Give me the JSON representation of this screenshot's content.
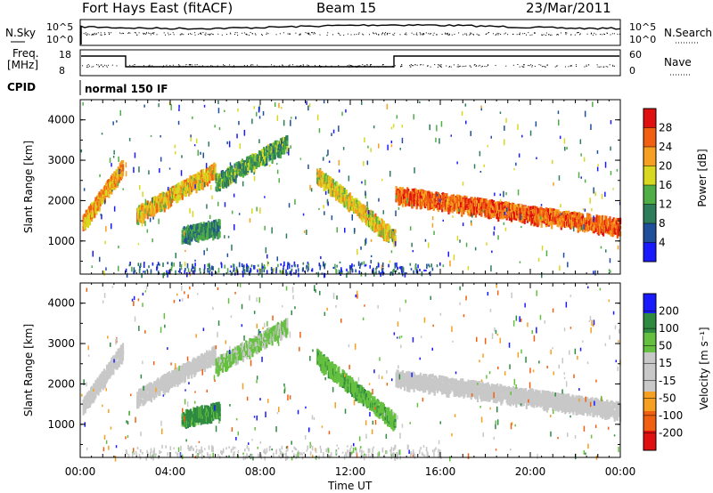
{
  "header": {
    "station": "Fort Hays East (fitACF)",
    "beam": "Beam 15",
    "date": "23/Mar/2011"
  },
  "panels": {
    "nsky": {
      "left_label": "N.Sky",
      "right_label": "N.Search",
      "left_ticks": [
        "10^5",
        "10^0"
      ],
      "right_ticks": [
        "10^5",
        "10^0"
      ]
    },
    "freq": {
      "left_label_1": "Freq.",
      "left_label_2": "[MHz]",
      "right_label": "Nave",
      "left_ticks": [
        "18",
        "8"
      ],
      "right_ticks": [
        "60",
        "0"
      ]
    },
    "cpid": {
      "label": "CPID",
      "mode": "normal 150 IF"
    },
    "power": {
      "ylabel": "Slant Range [km]",
      "yticks": [
        "4000",
        "3000",
        "2000",
        "1000"
      ],
      "cbar_label": "Power [dB]",
      "cbar_ticks": [
        "28",
        "24",
        "20",
        "16",
        "12",
        "8",
        "4"
      ]
    },
    "velocity": {
      "ylabel": "Slant Range [km]",
      "yticks": [
        "4000",
        "3000",
        "2000",
        "1000"
      ],
      "cbar_label": "Velocity [m s⁻¹]",
      "cbar_ticks": [
        "200",
        "100",
        "50",
        "15",
        "-15",
        "-50",
        "-100",
        "-200"
      ]
    }
  },
  "xaxis": {
    "label": "Time UT",
    "ticks": [
      "00:00",
      "04:00",
      "08:00",
      "12:00",
      "16:00",
      "20:00",
      "00:00"
    ]
  },
  "colors": {
    "power": [
      "#1a1aff",
      "#1f4f9a",
      "#2e7d5a",
      "#4fae46",
      "#d8d820",
      "#f5a020",
      "#f06010",
      "#e01010"
    ],
    "velocity": [
      "#e01010",
      "#f06010",
      "#f5a020",
      "#c8c8c8",
      "#c8c8c8",
      "#66c040",
      "#2e8a40",
      "#1a1aff"
    ]
  },
  "chart_data": [
    {
      "type": "heatmap",
      "title": "Power",
      "xlabel": "Time UT",
      "ylabel": "Slant Range [km]",
      "xlim": [
        0,
        24
      ],
      "ylim": [
        180,
        4500
      ],
      "colorbar": {
        "label": "Power [dB]",
        "range": [
          0,
          30
        ]
      },
      "echo_bands": [
        {
          "t0": 0.1,
          "t1": 1.9,
          "r0": 1500,
          "r1": 2900,
          "p": 20
        },
        {
          "t0": 2.5,
          "t1": 6.0,
          "r0": 1700,
          "r1": 2800,
          "p": 19
        },
        {
          "t0": 6.0,
          "t1": 9.2,
          "r0": 2500,
          "r1": 3500,
          "p": 12
        },
        {
          "t0": 4.5,
          "t1": 6.2,
          "r0": 1200,
          "r1": 1400,
          "p": 10
        },
        {
          "t0": 10.5,
          "t1": 14.0,
          "r0": 2700,
          "r1": 1100,
          "p": 18
        },
        {
          "t0": 14.0,
          "t1": 24.0,
          "r0": 2200,
          "r1": 1400,
          "p": 24
        }
      ]
    },
    {
      "type": "heatmap",
      "title": "Velocity",
      "xlabel": "Time UT",
      "ylabel": "Slant Range [km]",
      "xlim": [
        0,
        24
      ],
      "ylim": [
        180,
        4500
      ],
      "colorbar": {
        "label": "Velocity [m s⁻¹]",
        "range": [
          -200,
          200
        ]
      },
      "echo_bands": [
        {
          "t0": 0.1,
          "t1": 1.9,
          "r0": 1500,
          "r1": 2900,
          "v": 0
        },
        {
          "t0": 2.5,
          "t1": 6.0,
          "r0": 1700,
          "r1": 2800,
          "v": -20
        },
        {
          "t0": 6.0,
          "t1": 9.2,
          "r0": 2500,
          "r1": 3500,
          "v": 20
        },
        {
          "t0": 4.5,
          "t1": 6.2,
          "r0": 1200,
          "r1": 1400,
          "v": 60
        },
        {
          "t0": 10.5,
          "t1": 14.0,
          "r0": 2700,
          "r1": 1100,
          "v": 40
        },
        {
          "t0": 14.0,
          "t1": 24.0,
          "r0": 2200,
          "r1": 1400,
          "v": 0
        }
      ]
    }
  ]
}
